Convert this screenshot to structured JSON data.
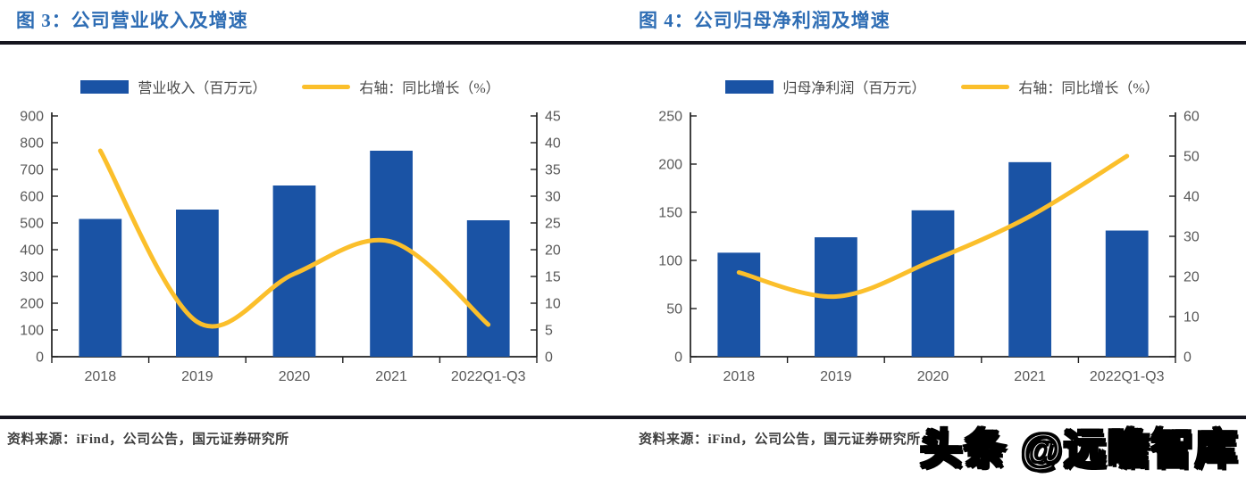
{
  "colors": {
    "bar": "#1A53A5",
    "line": "#FBBF2B",
    "title": "#2E6DB4",
    "rule": "#15151F",
    "axis": "#1F1F1F",
    "tick_text": "#595959",
    "source_text": "#3F3F3F"
  },
  "figures": [
    {
      "title": "图 3：公司营业收入及增速",
      "legend": [
        {
          "label": "营业收入（百万元）",
          "type": "bar"
        },
        {
          "label": "右轴：同比增长（%）",
          "type": "line"
        }
      ],
      "source": "资料来源：iFind，公司公告，国元证券研究所"
    },
    {
      "title": "图 4：公司归母净利润及增速",
      "legend": [
        {
          "label": "归母净利润（百万元）",
          "type": "bar"
        },
        {
          "label": "右轴：同比增长（%）",
          "type": "line"
        }
      ],
      "source": "资料来源：iFind，公司公告，国元证券研究所"
    }
  ],
  "watermark": "头条 @远瞻智库",
  "chart_data": [
    {
      "type": "bar",
      "title": "公司营业收入及增速",
      "categories": [
        "2018",
        "2019",
        "2020",
        "2021",
        "2022Q1-Q3"
      ],
      "series": [
        {
          "name": "营业收入（百万元）",
          "type": "bar",
          "axis": "left",
          "values": [
            515,
            550,
            640,
            770,
            510
          ]
        },
        {
          "name": "右轴：同比增长（%）",
          "type": "line",
          "axis": "right",
          "values": [
            38.5,
            6.5,
            15.5,
            21.5,
            6
          ]
        }
      ],
      "left_axis": {
        "min": 0,
        "max": 900,
        "step": 100
      },
      "right_axis": {
        "min": 0,
        "max": 45,
        "step": 5
      },
      "legend_position": "top",
      "grid": false
    },
    {
      "type": "bar",
      "title": "公司归母净利润及增速",
      "categories": [
        "2018",
        "2019",
        "2020",
        "2021",
        "2022Q1-Q3"
      ],
      "series": [
        {
          "name": "归母净利润（百万元）",
          "type": "bar",
          "axis": "left",
          "values": [
            108,
            124,
            152,
            202,
            131
          ]
        },
        {
          "name": "右轴：同比增长（%）",
          "type": "line",
          "axis": "right",
          "values": [
            21,
            15,
            24,
            35,
            50
          ]
        }
      ],
      "left_axis": {
        "min": 0,
        "max": 250,
        "step": 50
      },
      "right_axis": {
        "min": 0,
        "max": 60,
        "step": 10
      },
      "legend_position": "top",
      "grid": false
    }
  ]
}
